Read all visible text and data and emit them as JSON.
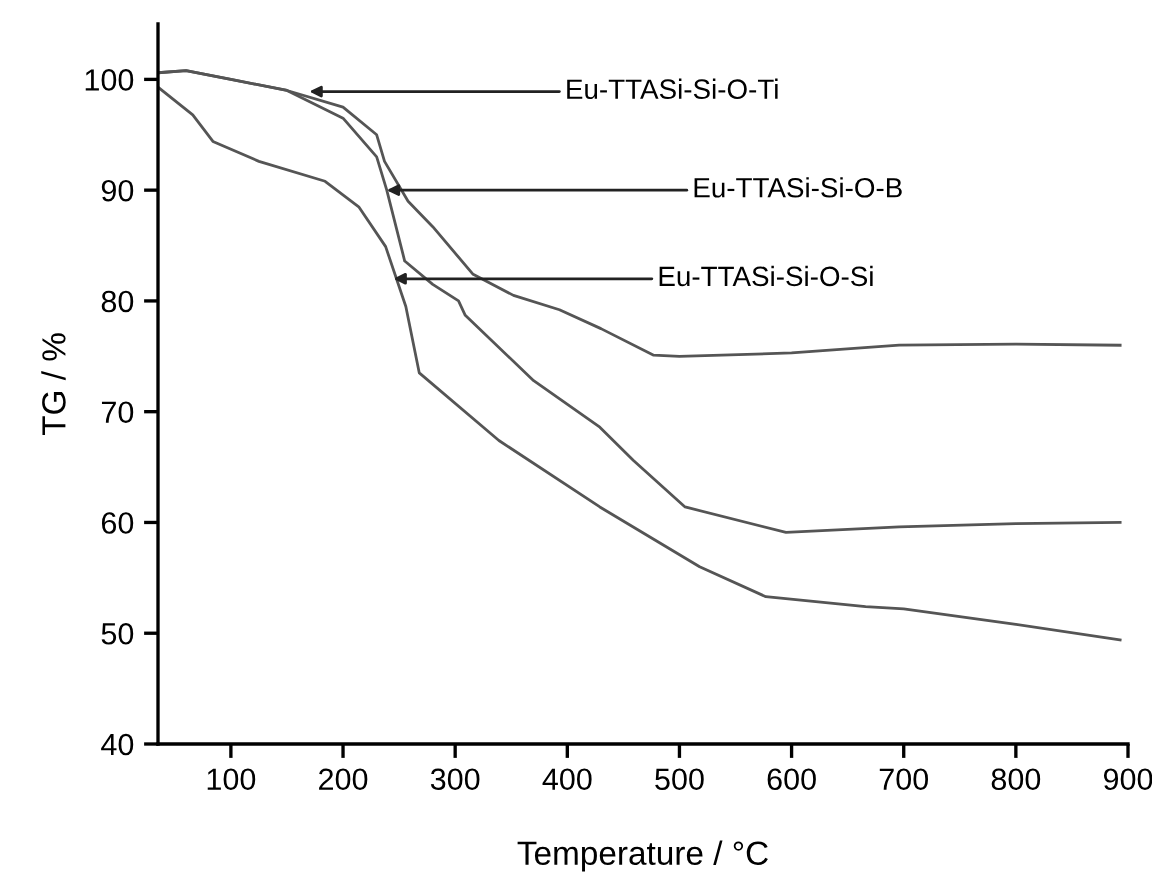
{
  "chart_data": {
    "type": "line",
    "xlabel": "Temperature / °C",
    "ylabel": "TG / %",
    "xlim": [
      35,
      900
    ],
    "ylim": [
      40,
      105
    ],
    "xticks": [
      100,
      200,
      300,
      400,
      500,
      600,
      700,
      800,
      900
    ],
    "yticks": [
      40,
      50,
      60,
      70,
      80,
      90,
      100
    ],
    "grid": false,
    "legend": false,
    "marker": "none",
    "line_style": "solid",
    "series": [
      {
        "color": "#555555",
        "x": [
          35,
          60,
          100,
          150,
          200,
          230,
          237,
          258,
          280,
          316,
          352,
          393,
          430,
          477,
          500,
          600,
          696,
          800,
          893
        ],
        "values": [
          100.6,
          100.8,
          100,
          99,
          97.5,
          95,
          92.6,
          89,
          86.7,
          82.4,
          80.5,
          79.2,
          77.5,
          75.1,
          75,
          75.3,
          76,
          76.1,
          76
        ]
      },
      {
        "color": "#555555",
        "x": [
          35,
          60,
          100,
          150,
          200,
          230,
          239,
          255,
          280,
          303,
          309,
          370,
          429,
          459,
          505,
          595,
          696,
          800,
          893
        ],
        "values": [
          100.6,
          100.8,
          100,
          99,
          96.5,
          93,
          90,
          83.6,
          81.5,
          80,
          78.7,
          72.8,
          68.6,
          65.6,
          61.4,
          59.1,
          59.6,
          59.9,
          60
        ]
      },
      {
        "color": "#555555",
        "x": [
          35,
          66,
          84,
          125,
          184,
          214,
          238,
          256,
          268,
          339,
          429,
          518,
          577,
          666,
          700,
          800,
          893
        ],
        "values": [
          99.3,
          96.8,
          94.4,
          92.6,
          90.8,
          88.5,
          84.9,
          79.5,
          73.5,
          67.4,
          61.4,
          56,
          53.3,
          52.4,
          52.2,
          50.8,
          49.4
        ]
      }
    ],
    "annotations": [
      {
        "text": "Eu-TTASi-Si-O-Ti",
        "x": 170,
        "y": 98.9
      },
      {
        "text": "Eu-TTASi-Si-O-B",
        "x": 239,
        "y": 90
      },
      {
        "text": "Eu-TTASi-Si-O-Si",
        "x": 245,
        "y": 82
      }
    ]
  }
}
